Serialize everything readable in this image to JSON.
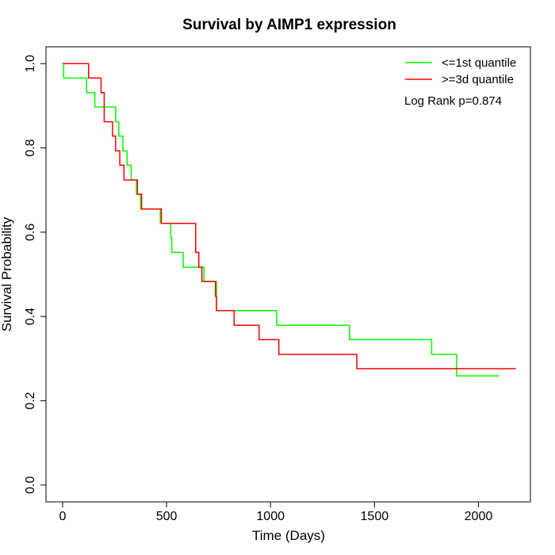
{
  "chart_data": {
    "type": "line",
    "title": "Survival by AIMP1 expression",
    "xlabel": "Time (Days)",
    "ylabel": "Survival Probability",
    "xlim": [
      -80,
      2250
    ],
    "ylim": [
      -0.04,
      1.04
    ],
    "x_ticks": [
      0,
      500,
      1000,
      1500,
      2000
    ],
    "x_tick_labels": [
      "0",
      "500",
      "1000",
      "1500",
      "2000"
    ],
    "y_ticks": [
      0.0,
      0.2,
      0.4,
      0.6,
      0.8,
      1.0
    ],
    "y_tick_labels": [
      "0.0",
      "0.2",
      "0.4",
      "0.6",
      "0.8",
      "1.0"
    ],
    "grid": false,
    "legend_position": "top-right",
    "series": [
      {
        "name": "<=1st quantile",
        "color": "#00ff00",
        "x": [
          0,
          5,
          115,
          155,
          255,
          270,
          290,
          310,
          330,
          355,
          375,
          395,
          470,
          520,
          525,
          580,
          680,
          740,
          1030,
          1380,
          1775,
          1895,
          2100
        ],
        "y": [
          1.0,
          0.966,
          0.931,
          0.897,
          0.862,
          0.828,
          0.793,
          0.759,
          0.724,
          0.69,
          0.655,
          0.655,
          0.621,
          0.586,
          0.552,
          0.517,
          0.483,
          0.414,
          0.379,
          0.345,
          0.31,
          0.259,
          0.259
        ]
      },
      {
        "name": ">=3d quantile",
        "color": "#ff0000",
        "x": [
          0,
          125,
          185,
          200,
          240,
          255,
          275,
          295,
          310,
          360,
          380,
          475,
          640,
          655,
          670,
          735,
          740,
          825,
          945,
          1040,
          1415,
          2180
        ],
        "y": [
          1.0,
          0.966,
          0.931,
          0.862,
          0.828,
          0.793,
          0.759,
          0.724,
          0.724,
          0.69,
          0.655,
          0.621,
          0.552,
          0.517,
          0.483,
          0.448,
          0.414,
          0.379,
          0.345,
          0.31,
          0.276,
          0.276
        ]
      }
    ],
    "annotation": "Log Rank p=0.874"
  }
}
